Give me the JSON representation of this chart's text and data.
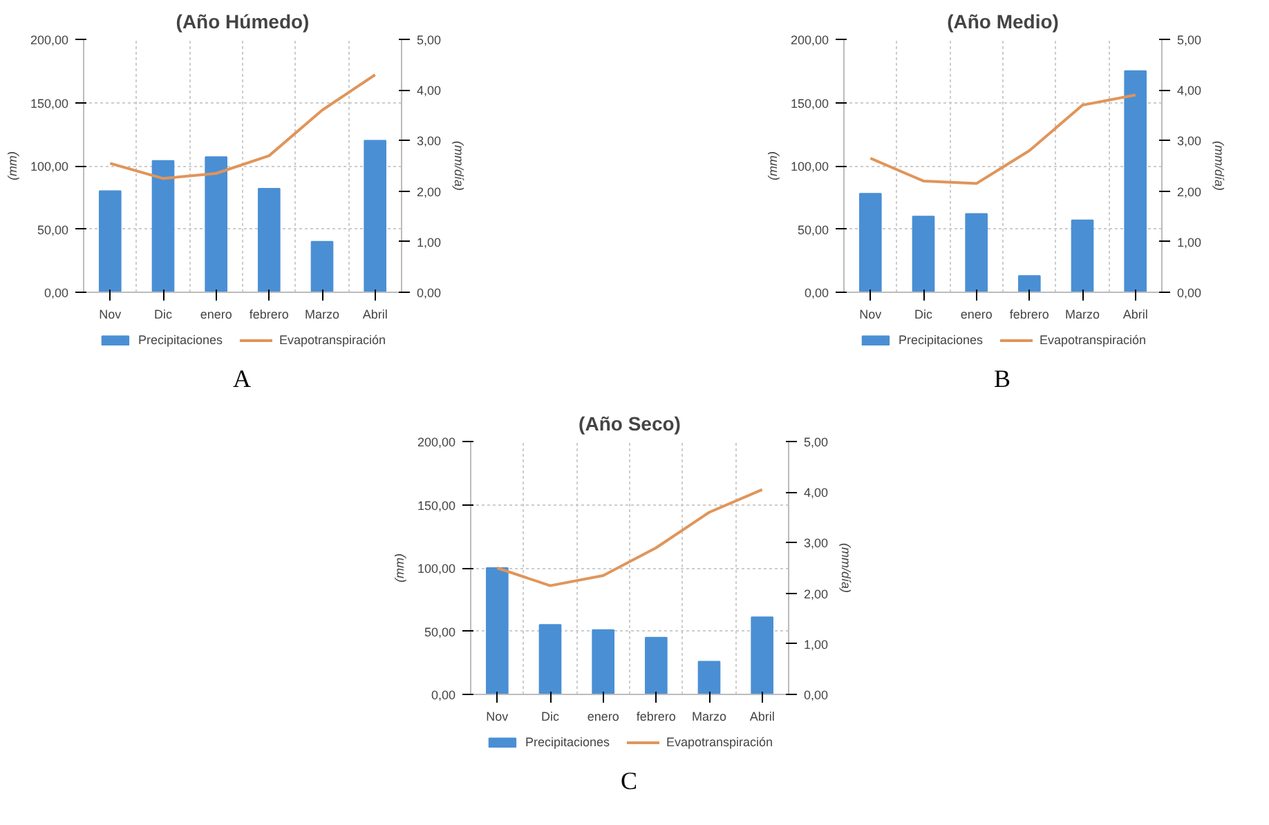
{
  "chart_data": [
    {
      "type": "bar",
      "title": "(Año Húmedo)",
      "ylabel": "(mm)",
      "y2label": "(mm/día)",
      "categories": [
        "Nov",
        "Dic",
        "enero",
        "febrero",
        "Marzo",
        "Abril"
      ],
      "series": [
        {
          "name": "Precipitaciones",
          "color": "#4a8fd4",
          "values": [
            80,
            104,
            107,
            82,
            40,
            120
          ]
        },
        {
          "name": "Evapotranspiración",
          "type": "line",
          "axis": "y2",
          "color": "#e0955a",
          "values": [
            2.55,
            2.25,
            2.35,
            2.7,
            3.6,
            4.3
          ]
        }
      ],
      "ylim": [
        0,
        200
      ],
      "yticks": [
        {
          "value": 0,
          "label": "0,00"
        },
        {
          "value": 50,
          "label": "50,00"
        },
        {
          "value": 100,
          "label": "100,00"
        },
        {
          "value": 150,
          "label": "150,00"
        },
        {
          "value": 200,
          "label": "200,00"
        }
      ],
      "y2lim": [
        0,
        5
      ],
      "y2ticks": [
        {
          "value": 0,
          "label": "0,00"
        },
        {
          "value": 1,
          "label": "1,00"
        },
        {
          "value": 2,
          "label": "2,00"
        },
        {
          "value": 3,
          "label": "3,00"
        },
        {
          "value": 4,
          "label": "4,00"
        },
        {
          "value": 5,
          "label": "5,00"
        }
      ],
      "grid": true,
      "legend": "bottom",
      "annotations": [
        "A"
      ]
    },
    {
      "type": "bar",
      "title": "(Año Medio)",
      "ylabel": "(mm)",
      "y2label": "(mm/día)",
      "categories": [
        "Nov",
        "Dic",
        "enero",
        "febrero",
        "Marzo",
        "Abril"
      ],
      "series": [
        {
          "name": "Precipitaciones",
          "color": "#4a8fd4",
          "values": [
            78,
            60,
            62,
            13,
            57,
            175
          ]
        },
        {
          "name": "Evapotranspiración",
          "type": "line",
          "axis": "y2",
          "color": "#e0955a",
          "values": [
            2.65,
            2.2,
            2.15,
            2.8,
            3.7,
            3.9
          ]
        }
      ],
      "ylim": [
        0,
        200
      ],
      "yticks": [
        {
          "value": 0,
          "label": "0,00"
        },
        {
          "value": 50,
          "label": "50,00"
        },
        {
          "value": 100,
          "label": "100,00"
        },
        {
          "value": 150,
          "label": "150,00"
        },
        {
          "value": 200,
          "label": "200,00"
        }
      ],
      "y2lim": [
        0,
        5
      ],
      "y2ticks": [
        {
          "value": 0,
          "label": "0,00"
        },
        {
          "value": 1,
          "label": "1,00"
        },
        {
          "value": 2,
          "label": "2,00"
        },
        {
          "value": 3,
          "label": "3,00"
        },
        {
          "value": 4,
          "label": "4,00"
        },
        {
          "value": 5,
          "label": "5,00"
        }
      ],
      "grid": true,
      "legend": "bottom",
      "annotations": [
        "B"
      ]
    },
    {
      "type": "bar",
      "title": "(Año Seco)",
      "ylabel": "(mm)",
      "y2label": "(mm/día)",
      "categories": [
        "Nov",
        "Dic",
        "enero",
        "febrero",
        "Marzo",
        "Abril"
      ],
      "series": [
        {
          "name": "Precipitaciones",
          "color": "#4a8fd4",
          "values": [
            100,
            55,
            51,
            45,
            26,
            61
          ]
        },
        {
          "name": "Evapotranspiración",
          "type": "line",
          "axis": "y2",
          "color": "#e0955a",
          "values": [
            2.5,
            2.15,
            2.35,
            2.9,
            3.6,
            4.05
          ]
        }
      ],
      "ylim": [
        0,
        200
      ],
      "yticks": [
        {
          "value": 0,
          "label": "0,00"
        },
        {
          "value": 50,
          "label": "50,00"
        },
        {
          "value": 100,
          "label": "100,00"
        },
        {
          "value": 150,
          "label": "150,00"
        },
        {
          "value": 200,
          "label": "200,00"
        }
      ],
      "y2lim": [
        0,
        5
      ],
      "y2ticks": [
        {
          "value": 0,
          "label": "0,00"
        },
        {
          "value": 1,
          "label": "1,00"
        },
        {
          "value": 2,
          "label": "2,00"
        },
        {
          "value": 3,
          "label": "3,00"
        },
        {
          "value": 4,
          "label": "4,00"
        },
        {
          "value": 5,
          "label": "5,00"
        }
      ],
      "grid": true,
      "legend": "bottom",
      "annotations": [
        "C"
      ]
    }
  ]
}
